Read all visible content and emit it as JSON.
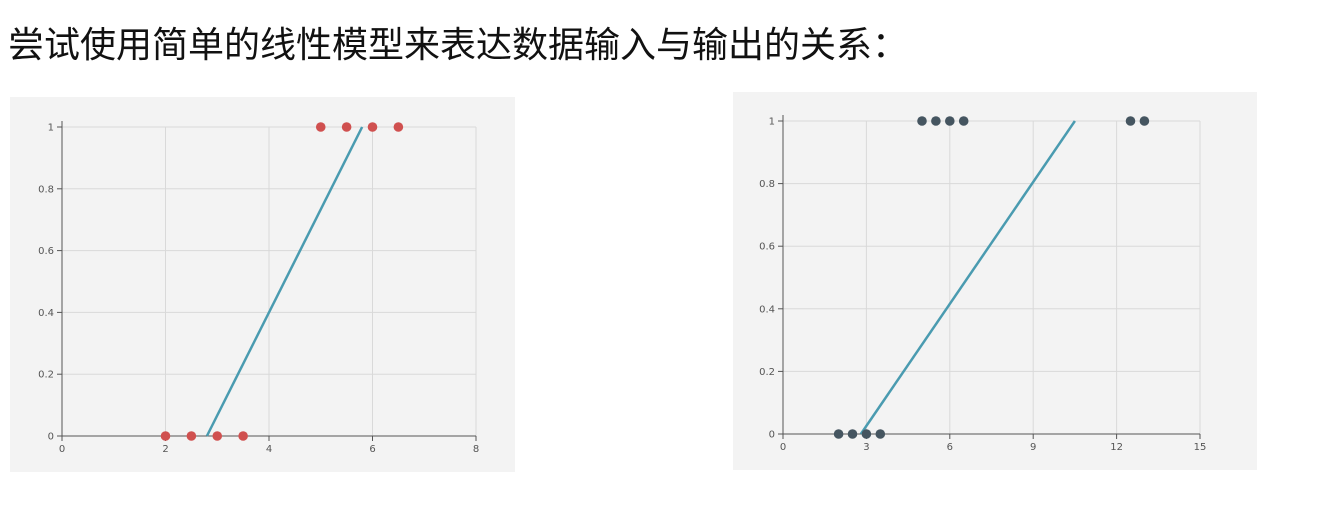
{
  "heading": "尝试使用简单的线性模型来表达数据输入与输出的关系：",
  "colors": {
    "line": "#4a9bb0",
    "left_points": "#d0504f",
    "right_points": "#455560",
    "panel_bg": "#f3f3f3"
  },
  "chart_data": [
    {
      "type": "scatter",
      "title": "",
      "xlabel": "",
      "ylabel": "",
      "xlim": [
        0,
        8
      ],
      "ylim": [
        0,
        1
      ],
      "xticks": [
        "0",
        "2",
        "4",
        "6",
        "8"
      ],
      "yticks": [
        "0",
        "0.2",
        "0.4",
        "0.6",
        "0.8",
        "1"
      ],
      "grid": true,
      "series": [
        {
          "type": "scatter",
          "color": "#d0504f",
          "points": [
            [
              2,
              0
            ],
            [
              2.5,
              0
            ],
            [
              3,
              0
            ],
            [
              3.5,
              0
            ],
            [
              5,
              1
            ],
            [
              5.5,
              1
            ],
            [
              6,
              1
            ],
            [
              6.5,
              1
            ]
          ]
        },
        {
          "type": "line",
          "color": "#4a9bb0",
          "points": [
            [
              2.8,
              0
            ],
            [
              5.8,
              1
            ]
          ]
        }
      ]
    },
    {
      "type": "scatter",
      "title": "",
      "xlabel": "",
      "ylabel": "",
      "xlim": [
        0,
        15
      ],
      "ylim": [
        0,
        1
      ],
      "xticks": [
        "0",
        "3",
        "6",
        "9",
        "12",
        "15"
      ],
      "yticks": [
        "0",
        "0.2",
        "0.4",
        "0.6",
        "0.8",
        "1"
      ],
      "grid": true,
      "series": [
        {
          "type": "scatter",
          "color": "#455560",
          "points": [
            [
              2,
              0
            ],
            [
              2.5,
              0
            ],
            [
              3,
              0
            ],
            [
              3.5,
              0
            ],
            [
              5,
              1
            ],
            [
              5.5,
              1
            ],
            [
              6,
              1
            ],
            [
              6.5,
              1
            ],
            [
              12.5,
              1
            ],
            [
              13,
              1
            ]
          ]
        },
        {
          "type": "line",
          "color": "#4a9bb0",
          "points": [
            [
              2.8,
              0
            ],
            [
              10.5,
              1
            ]
          ]
        }
      ]
    }
  ]
}
